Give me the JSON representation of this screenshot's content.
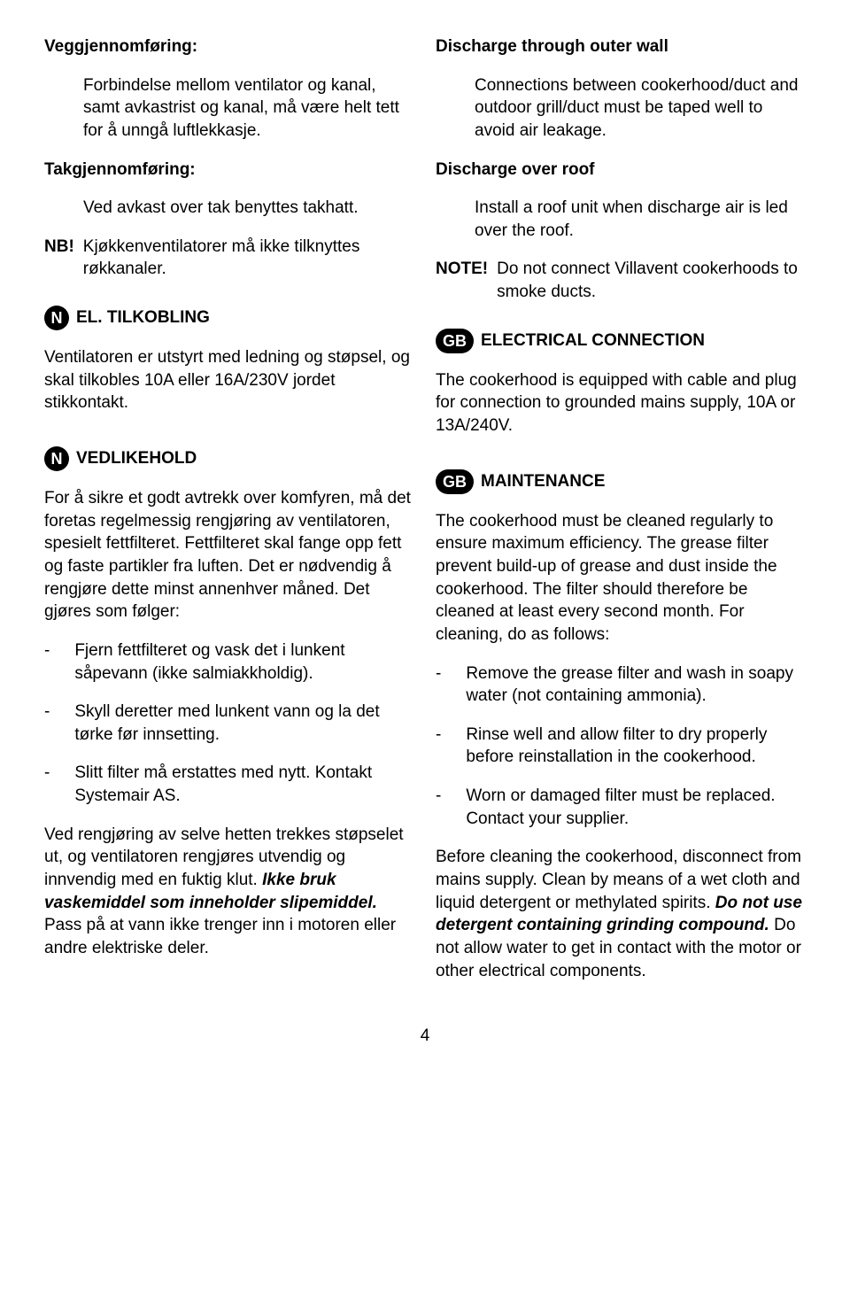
{
  "left": {
    "h1": "Veggjennomføring:",
    "p1": "Forbindelse mellom ventilator og kanal, samt avkastrist og kanal, må være helt tett for å unngå luftlekkasje.",
    "h2": "Takgjennomføring:",
    "p2": "Ved avkast over tak benyttes takhatt.",
    "nb_label": "NB!",
    "nb_text": "Kjøkkenventilatorer må ikke tilknyttes røkkanaler.",
    "badge1": "N",
    "sec1": "EL. TILKOBLING",
    "sec1_p": "Ventilatoren er utstyrt med ledning og støpsel, og skal tilkobles 10A eller 16A/230V jordet stikkontakt.",
    "badge2": "N",
    "sec2": "VEDLIKEHOLD",
    "sec2_p": "For å sikre et godt avtrekk over komfyren, må det foretas regelmessig rengjøring av ventilatoren, spesielt fettfilteret. Fettfilteret skal fange opp fett og faste partikler fra luften. Det er nødvendig å rengjøre dette minst annenhver måned. Det gjøres som følger:",
    "li1": "Fjern fettfilteret og vask det i lunkent såpevann (ikke salmiakkholdig).",
    "li2": "Skyll deretter med lunkent vann og la det tørke før innsetting.",
    "li3": "Slitt filter må erstattes med nytt. Kontakt Systemair AS.",
    "footer_plain1": "Ved rengjøring av selve hetten trekkes støpselet ut, og ventilatoren rengjøres utvendig og innvendig med en fuktig klut. ",
    "footer_bi": "Ikke bruk vaskemiddel som inneholder slipemiddel.",
    "footer_plain2": " Pass på at vann ikke trenger inn i motoren eller andre elektriske deler."
  },
  "right": {
    "h1": "Discharge through outer wall",
    "p1": "Connections between cookerhood/duct and outdoor grill/duct must be taped well to avoid air leakage.",
    "h2": "Discharge over roof",
    "p2": "Install a roof unit when discharge air is led over the roof.",
    "note_label": "NOTE!",
    "note_text": "Do not connect Villavent cookerhoods to smoke ducts.",
    "badge1": "GB",
    "sec1": "ELECTRICAL CONNECTION",
    "sec1_p": "The cookerhood is equipped with cable and plug for connection to grounded mains supply, 10A or 13A/240V.",
    "badge2": "GB",
    "sec2": "MAINTENANCE",
    "sec2_p": "The cookerhood must be cleaned regularly to ensure maximum efficiency. The grease filter prevent build-up of grease and dust inside the cookerhood. The filter should therefore be cleaned at least every second month. For cleaning, do as follows:",
    "li1": "Remove the grease filter and wash in soapy water (not containing ammonia).",
    "li2": "Rinse well and allow filter to dry properly before reinstallation in the cookerhood.",
    "li3": "Worn or damaged filter must be replaced. Contact your supplier.",
    "footer_plain1": "Before cleaning the cookerhood, disconnect from mains supply. Clean by means of a wet cloth and liquid detergent or methylated spirits. ",
    "footer_bi": "Do not use detergent containing grinding compound.",
    "footer_plain2": " Do not allow water to get in contact with the motor or other electrical components."
  },
  "dash": "-",
  "pagenum": "4"
}
